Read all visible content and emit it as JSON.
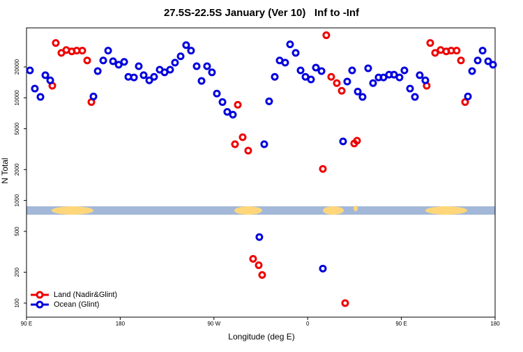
{
  "chart_data": {
    "type": "scatter",
    "title": "27.5S-22.5S January (Ver 10)   Inf to -Inf",
    "x_label": "Longitude (deg E)",
    "y_label": "N Total",
    "log_y": true,
    "legend": "bottom-left",
    "xlim": [
      90,
      540
    ],
    "xticks": [
      {
        "value": 90,
        "label": "90 E"
      },
      180,
      {
        "value": 270,
        "label": "90 W"
      },
      {
        "value": 360,
        "label": "0"
      },
      {
        "value": 450,
        "label": "90 E"
      },
      {
        "value": 540,
        "label": "180"
      }
    ],
    "ylim": [
      73,
      48000
    ],
    "yticks": [
      100,
      200,
      500,
      1000,
      2000,
      5000,
      10000,
      20000
    ],
    "series": [
      {
        "name": "Land (Nadir&Glint)",
        "color": "#ee0000",
        "x": [
          114.8,
          118.1,
          123.5,
          128.2,
          133.5,
          138.2,
          143.6,
          148.3,
          152.3,
          290.2,
          292.9,
          297.6,
          302.9,
          307.6,
          313.0,
          316.3,
          374.6,
          377.9,
          382.6,
          388.0,
          392.7,
          396.0,
          404.7,
          407.4,
          474.3,
          477.7,
          482.4,
          487.7,
          493.1,
          497.8,
          503.1,
          507.2,
          511.2
        ],
        "values": [
          13100,
          34200,
          27400,
          29200,
          28300,
          28800,
          28800,
          23100,
          9090,
          3530,
          8550,
          4130,
          3060,
          270,
          234,
          188,
          2030,
          40700,
          16000,
          13900,
          11700,
          100,
          3590,
          3820,
          13100,
          34200,
          27400,
          29200,
          28300,
          28800,
          28800,
          23100,
          9090
        ]
      },
      {
        "name": "Ocean (Glint)",
        "color": "#0000dd",
        "x": [
          93.3,
          98.0,
          103.4,
          108.1,
          112.8,
          154.3,
          158.4,
          163.7,
          168.4,
          173.1,
          178.5,
          183.8,
          187.8,
          193.2,
          197.8,
          202.5,
          207.9,
          212.5,
          217.9,
          222.6,
          227.9,
          232.6,
          238.0,
          243.3,
          248.0,
          253.4,
          258.1,
          263.4,
          268.1,
          272.8,
          278.2,
          282.8,
          288.2,
          313.6,
          318.3,
          323.0,
          328.4,
          333.1,
          338.4,
          343.1,
          348.5,
          353.2,
          357.9,
          363.2,
          367.9,
          373.3,
          374.6,
          394.0,
          398.0,
          402.7,
          408.1,
          412.7,
          418.1,
          422.8,
          428.1,
          432.8,
          438.2,
          442.9,
          448.2,
          452.9,
          458.3,
          463.0,
          467.6,
          473.0,
          513.9,
          517.9,
          523.3,
          528.0,
          533.3,
          538.0
        ],
        "values": [
          18500,
          12300,
          10200,
          16600,
          14800,
          10300,
          18200,
          23100,
          28800,
          22700,
          21000,
          22400,
          16000,
          15800,
          20300,
          16600,
          14800,
          16000,
          18800,
          17700,
          18800,
          22000,
          25400,
          32600,
          28800,
          20300,
          14600,
          20300,
          17700,
          11000,
          9090,
          7300,
          6850,
          440,
          3530,
          9240,
          16000,
          23100,
          22000,
          33200,
          27400,
          18500,
          16000,
          15100,
          19700,
          18200,
          217,
          3760,
          14400,
          18500,
          11500,
          10200,
          19400,
          13900,
          15800,
          15800,
          16800,
          16800,
          15800,
          18500,
          12300,
          10200,
          16600,
          14800,
          10300,
          18200,
          23100,
          28800,
          22700,
          21000
        ]
      }
    ]
  }
}
